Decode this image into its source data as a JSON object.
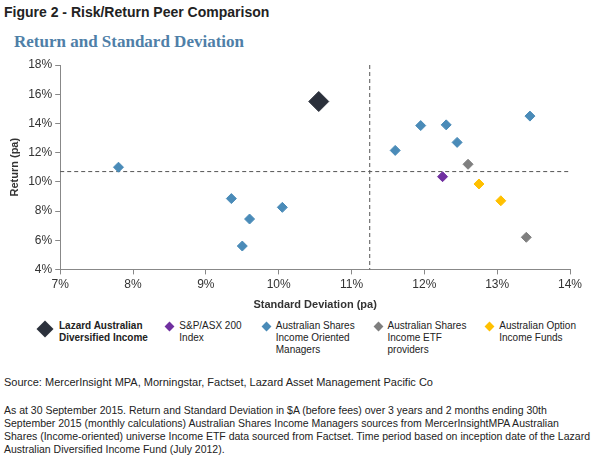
{
  "figure_title": "Figure 2 - Risk/Return Peer Comparison",
  "chart_data": {
    "type": "scatter",
    "title": "Return and Standard Deviation",
    "x_label": "Standard Deviation (pa)",
    "y_label": "Return (pa)",
    "xlim": [
      7,
      14
    ],
    "xticks": [
      {
        "value": 7,
        "label": "7%"
      },
      {
        "value": 8,
        "label": "8%"
      },
      {
        "value": 9,
        "label": "9%"
      },
      {
        "value": 10,
        "label": "10%"
      },
      {
        "value": 11,
        "label": "11%"
      },
      {
        "value": 12,
        "label": "12%"
      },
      {
        "value": 13,
        "label": "13%"
      },
      {
        "value": 14,
        "label": "14%"
      }
    ],
    "ylim": [
      4,
      18
    ],
    "yticks": [
      {
        "value": 4,
        "label": "4%"
      },
      {
        "value": 6,
        "label": "6%"
      },
      {
        "value": 8,
        "label": "8%"
      },
      {
        "value": 10,
        "label": "10%"
      },
      {
        "value": 12,
        "label": "12%"
      },
      {
        "value": 14,
        "label": "14%"
      },
      {
        "value": 16,
        "label": "16%"
      },
      {
        "value": 18,
        "label": "18%"
      }
    ],
    "grid": false,
    "legend": "bottom",
    "reference_lines": {
      "x": 11.25,
      "y": 10.7
    },
    "series": [
      {
        "name": "Lazard Australian Diversified Income",
        "color": "#2b303b",
        "marker": "diamond",
        "x": [
          10.55
        ],
        "values": [
          15.5
        ]
      },
      {
        "name": "S&P/ASX 200 Index",
        "color": "#7030a0",
        "marker": "diamond",
        "x": [
          12.25
        ],
        "values": [
          10.35
        ]
      },
      {
        "name": "Australian Shares Income Oriented Managers",
        "color": "#4a8bb8",
        "marker": "diamond",
        "x": [
          7.8,
          9.35,
          9.6,
          9.5,
          10.05,
          11.6,
          11.95,
          12.3,
          12.45,
          13.45
        ],
        "values": [
          11.0,
          8.85,
          7.45,
          5.6,
          8.25,
          12.15,
          13.85,
          13.9,
          12.7,
          14.5
        ]
      },
      {
        "name": "Australian Shares Income ETF providers",
        "color": "#7f7f7f",
        "marker": "diamond",
        "x": [
          12.6,
          13.4
        ],
        "values": [
          11.2,
          6.2
        ]
      },
      {
        "name": "Australian Option Income Funds",
        "color": "#ffc000",
        "marker": "diamond",
        "x": [
          12.75,
          13.05
        ],
        "values": [
          9.85,
          8.7
        ]
      }
    ]
  },
  "source": "Source: MercerInsight MPA, Morningstar, Factset, Lazard Asset Management Pacific Co",
  "notes": "As at 30 September 2015. Return and Standard Deviation in $A (before fees) over 3 years and 2 months ending 30th September 2015 (monthly calculations) Australian Shares Income Managers sources from MercerInsightMPA Australian Shares (Income-oriented) universe Income ETF data sourced from Factset. Time period based on inception date of the Lazard Australian Diversified Income Fund (July 2012)."
}
